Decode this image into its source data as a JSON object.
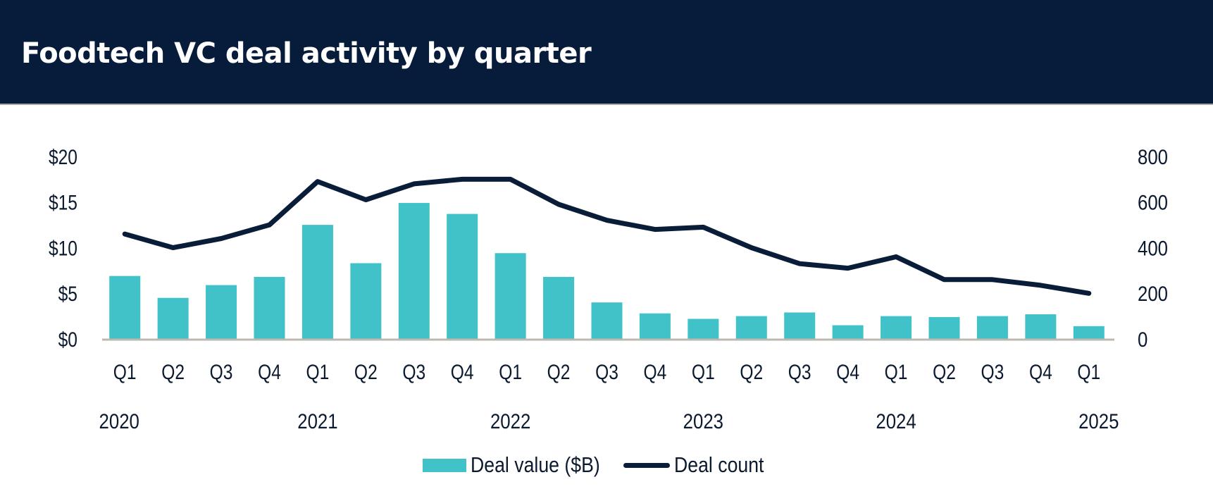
{
  "header": {
    "title": "Foodtech VC deal activity by quarter"
  },
  "colors": {
    "header_bg": "#061c3a",
    "bar": "#40c2c8",
    "line": "#0a1d38",
    "axis": "#bdb8b0",
    "text": "#0b1a2e"
  },
  "chart_data": {
    "type": "bar+line",
    "title": "Foodtech VC deal activity by quarter",
    "categories": [
      "Q1",
      "Q2",
      "Q3",
      "Q4",
      "Q1",
      "Q2",
      "Q3",
      "Q4",
      "Q1",
      "Q2",
      "Q3",
      "Q4",
      "Q1",
      "Q2",
      "Q3",
      "Q4",
      "Q1",
      "Q2",
      "Q3",
      "Q4",
      "Q1"
    ],
    "year_labels": [
      {
        "label": "2020",
        "index": 0
      },
      {
        "label": "2021",
        "index": 4
      },
      {
        "label": "2022",
        "index": 8
      },
      {
        "label": "2023",
        "index": 12
      },
      {
        "label": "2024",
        "index": 16
      },
      {
        "label": "2025",
        "index": 20
      }
    ],
    "series": [
      {
        "name": "Deal value ($B)",
        "type": "bar",
        "axis": "left",
        "values": [
          6.9,
          4.5,
          5.9,
          6.8,
          12.5,
          8.3,
          14.9,
          13.7,
          9.4,
          6.8,
          4.0,
          2.8,
          2.2,
          2.5,
          2.9,
          1.5,
          2.5,
          2.4,
          2.5,
          2.7,
          1.4
        ]
      },
      {
        "name": "Deal count",
        "type": "line",
        "axis": "right",
        "values": [
          460,
          400,
          440,
          500,
          690,
          610,
          680,
          700,
          700,
          590,
          520,
          480,
          490,
          400,
          330,
          310,
          360,
          260,
          260,
          235,
          200
        ]
      }
    ],
    "left_axis": {
      "ylim": [
        0,
        20
      ],
      "ticks": [
        0,
        5,
        10,
        15,
        20
      ],
      "tick_labels": [
        "$0",
        "$5",
        "$10",
        "$15",
        "$20"
      ]
    },
    "right_axis": {
      "ylim": [
        0,
        800
      ],
      "ticks": [
        0,
        200,
        400,
        600,
        800
      ],
      "tick_labels": [
        "0",
        "200",
        "400",
        "600",
        "800"
      ]
    },
    "xlabel": "",
    "ylabel": "",
    "grid": false,
    "legend": {
      "position": "bottom-center",
      "entries": [
        "Deal value ($B)",
        "Deal count"
      ]
    }
  }
}
